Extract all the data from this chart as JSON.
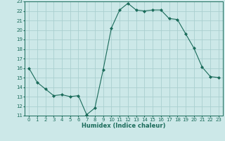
{
  "x": [
    0,
    1,
    2,
    3,
    4,
    5,
    6,
    7,
    8,
    9,
    10,
    11,
    12,
    13,
    14,
    15,
    16,
    17,
    18,
    19,
    20,
    21,
    22,
    23
  ],
  "y": [
    16,
    14.5,
    13.8,
    13.1,
    13.2,
    13.0,
    13.1,
    11.1,
    11.8,
    15.8,
    20.2,
    22.1,
    22.8,
    22.1,
    22.0,
    22.1,
    22.1,
    21.2,
    21.1,
    19.6,
    18.1,
    16.1,
    15.1,
    15.0
  ],
  "line_color": "#1a6b5a",
  "marker": "D",
  "marker_size": 2.0,
  "bg_color": "#cce8e8",
  "grid_color": "#aacfcf",
  "xlabel": "Humidex (Indice chaleur)",
  "ylabel": "",
  "xlim": [
    -0.5,
    23.5
  ],
  "ylim": [
    11,
    23
  ],
  "yticks": [
    11,
    12,
    13,
    14,
    15,
    16,
    17,
    18,
    19,
    20,
    21,
    22,
    23
  ],
  "xticks": [
    0,
    1,
    2,
    3,
    4,
    5,
    6,
    7,
    8,
    9,
    10,
    11,
    12,
    13,
    14,
    15,
    16,
    17,
    18,
    19,
    20,
    21,
    22,
    23
  ],
  "tick_color": "#1a6b5a",
  "label_color": "#1a6b5a",
  "spine_color": "#1a6b5a",
  "tick_labelsize": 5.0,
  "xlabel_fontsize": 6.0,
  "linewidth": 0.8
}
